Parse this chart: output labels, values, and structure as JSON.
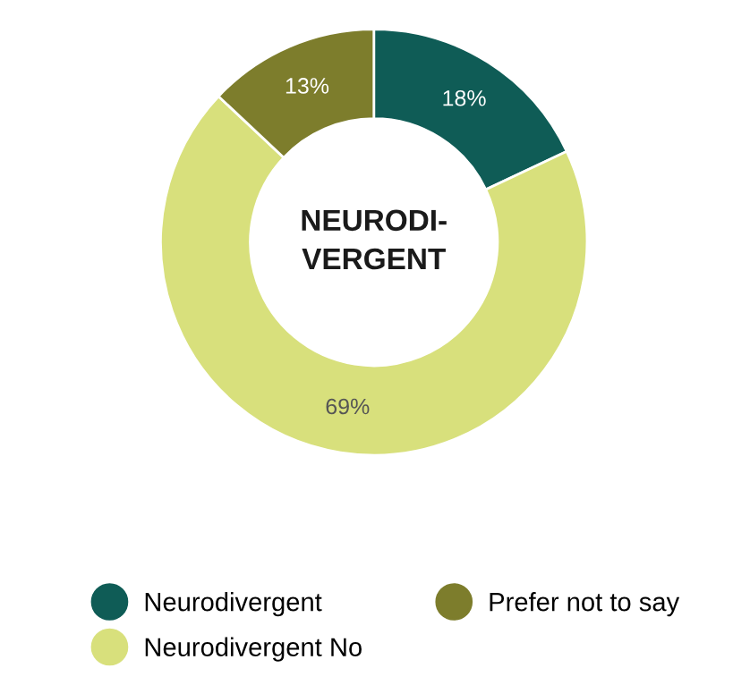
{
  "chart_data": {
    "type": "donut",
    "title": "NEURODI-\nVERGENT",
    "categories": [
      "Neurodivergent",
      "Neurodivergent No",
      "Prefer not to say"
    ],
    "values": [
      18,
      69,
      13
    ],
    "colors": [
      "#0f5c56",
      "#d8e07c",
      "#7d7d2c"
    ],
    "value_labels": [
      "18%",
      "69%",
      "13%"
    ],
    "legend": "bottom"
  }
}
